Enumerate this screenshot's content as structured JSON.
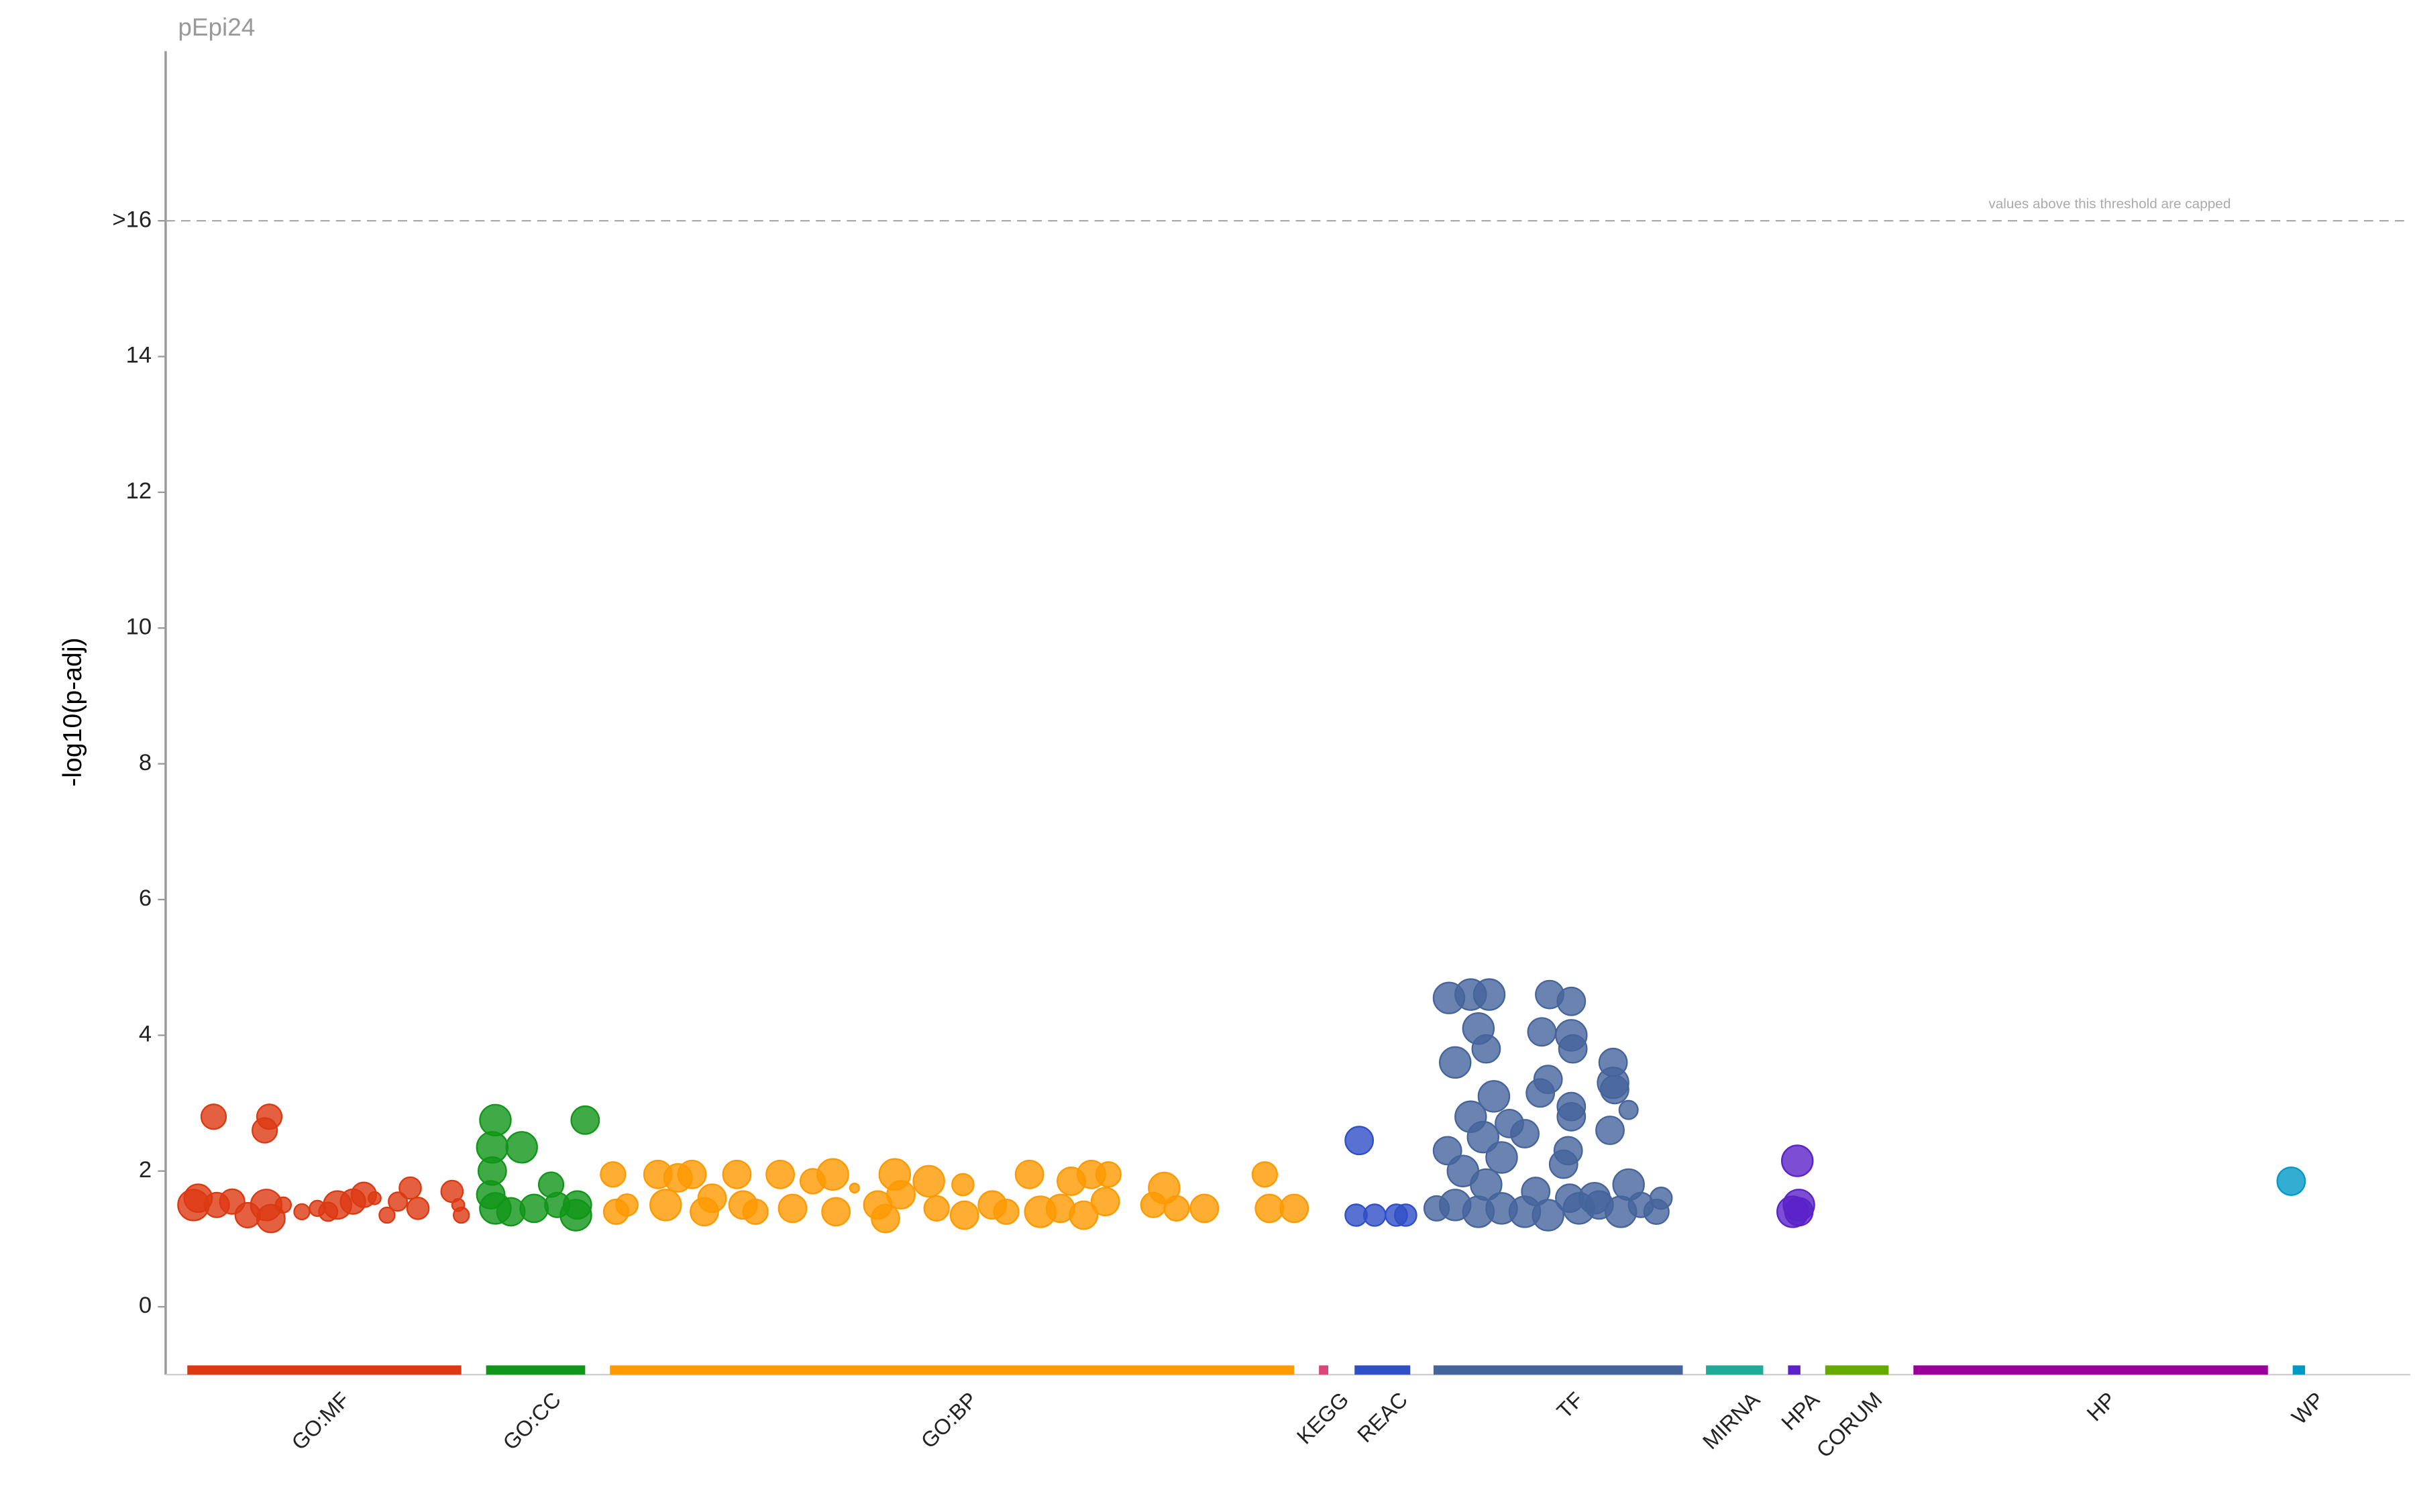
{
  "chart_data": {
    "type": "scatter",
    "title": "pEpi24",
    "y_label": "-log10(p-adj)",
    "annotation": "values above this threshold are capped",
    "xlim": [
      0,
      1450
    ],
    "ylim": [
      -1,
      18.5
    ],
    "yticks": [
      0,
      2,
      4,
      6,
      8,
      10,
      12,
      14,
      {
        "value": 16,
        "label": ">16"
      }
    ],
    "series": [
      {
        "name": "GO:MF",
        "color": "#dc3912",
        "range": [
          14,
          191
        ],
        "x": [
          18,
          21,
          33,
          43,
          53,
          65,
          68,
          31,
          67,
          64,
          88,
          98,
          111,
          121,
          128,
          135,
          143,
          150,
          158,
          163,
          185,
          191,
          189,
          105,
          76
        ],
        "values": [
          1.5,
          1.6,
          1.5,
          1.55,
          1.35,
          1.5,
          1.3,
          2.8,
          2.8,
          2.6,
          1.4,
          1.45,
          1.5,
          1.55,
          1.65,
          1.6,
          1.35,
          1.55,
          1.75,
          1.45,
          1.7,
          1.35,
          1.5,
          1.4,
          1.5
        ],
        "sizes": [
          10,
          9,
          8,
          8,
          8,
          10,
          9,
          8,
          8,
          8,
          5,
          5,
          9,
          8,
          8,
          4,
          5,
          6,
          7,
          7,
          7,
          5,
          4,
          6,
          5
        ]
      },
      {
        "name": "GO:CC",
        "color": "#109618",
        "range": [
          207,
          271
        ],
        "x": [
          213,
          211,
          230,
          211,
          210,
          213,
          223,
          238,
          249,
          253,
          265,
          266,
          271
        ],
        "values": [
          2.75,
          2.35,
          2.35,
          2.0,
          1.65,
          1.45,
          1.4,
          1.45,
          1.8,
          1.5,
          1.35,
          1.5,
          2.75
        ],
        "sizes": [
          10,
          10,
          10,
          9,
          9,
          10,
          9,
          9,
          8,
          8,
          10,
          9,
          9
        ]
      },
      {
        "name": "GO:BP",
        "color": "#ff9900",
        "range": [
          287,
          729
        ],
        "x": [
          289,
          291,
          298,
          318,
          323,
          331,
          340,
          348,
          353,
          369,
          373,
          381,
          397,
          405,
          418,
          431,
          433,
          445,
          460,
          465,
          471,
          475,
          493,
          498,
          515,
          516,
          534,
          543,
          558,
          565,
          578,
          585,
          593,
          598,
          607,
          609,
          638,
          645,
          653,
          671,
          710,
          713,
          729
        ],
        "values": [
          1.95,
          1.4,
          1.5,
          1.95,
          1.5,
          1.9,
          1.95,
          1.4,
          1.6,
          1.95,
          1.5,
          1.4,
          1.95,
          1.45,
          1.85,
          1.95,
          1.4,
          1.75,
          1.5,
          1.3,
          1.95,
          1.65,
          1.85,
          1.45,
          1.8,
          1.35,
          1.5,
          1.4,
          1.95,
          1.4,
          1.45,
          1.85,
          1.35,
          1.95,
          1.55,
          1.95,
          1.5,
          1.75,
          1.45,
          1.45,
          1.95,
          1.45,
          1.45
        ],
        "sizes": [
          8,
          8,
          7,
          9,
          10,
          9,
          9,
          9,
          9,
          9,
          9,
          8,
          9,
          9,
          8,
          10,
          9,
          3,
          9,
          9,
          10,
          9,
          10,
          8,
          7,
          9,
          9,
          8,
          9,
          10,
          9,
          9,
          9,
          9,
          9,
          8,
          8,
          10,
          8,
          9,
          8,
          9,
          9
        ]
      },
      {
        "name": "KEGG",
        "color": "#dd4477",
        "range": [
          745,
          751
        ],
        "x": [],
        "values": [],
        "sizes": []
      },
      {
        "name": "REAC",
        "color": "#2f4fc6",
        "range": [
          768,
          804
        ],
        "x": [
          771,
          769,
          781,
          795,
          801
        ],
        "values": [
          2.45,
          1.35,
          1.35,
          1.35,
          1.35
        ],
        "sizes": [
          9,
          7,
          7,
          7,
          7
        ]
      },
      {
        "name": "TF",
        "color": "#46649c",
        "range": [
          819,
          980
        ],
        "x": [
          829,
          843,
          855,
          833,
          848,
          853,
          858,
          843,
          851,
          828,
          838,
          853,
          863,
          868,
          878,
          833,
          848,
          863,
          878,
          893,
          894,
          908,
          889,
          908,
          909,
          893,
          888,
          908,
          908,
          906,
          903,
          935,
          935,
          936,
          945,
          933,
          926,
          945,
          940,
          907,
          913,
          923,
          953,
          966,
          963,
          821,
          885
        ],
        "values": [
          4.55,
          4.6,
          4.6,
          3.6,
          4.1,
          3.8,
          3.1,
          2.8,
          2.5,
          2.3,
          2.0,
          1.8,
          2.2,
          2.7,
          2.55,
          1.5,
          1.4,
          1.45,
          1.4,
          1.35,
          4.6,
          4.5,
          4.05,
          4.0,
          3.8,
          3.35,
          3.15,
          2.95,
          2.8,
          2.3,
          2.1,
          3.6,
          3.3,
          3.2,
          2.9,
          2.6,
          1.5,
          1.8,
          1.4,
          1.6,
          1.45,
          1.6,
          1.5,
          1.6,
          1.4,
          1.45,
          1.7
        ],
        "sizes": [
          10,
          10,
          10,
          10,
          10,
          9,
          10,
          10,
          10,
          9,
          10,
          10,
          10,
          9,
          9,
          10,
          10,
          10,
          10,
          10,
          9,
          9,
          9,
          10,
          9,
          9,
          9,
          9,
          9,
          9,
          9,
          9,
          10,
          9,
          6,
          9,
          9,
          10,
          10,
          9,
          10,
          10,
          8,
          7,
          8,
          8,
          9
        ]
      },
      {
        "name": "MIRNA",
        "color": "#22aa99",
        "range": [
          995,
          1032
        ],
        "x": [],
        "values": [],
        "sizes": []
      },
      {
        "name": "HPA",
        "color": "#5a22c8",
        "range": [
          1048,
          1056
        ],
        "x": [
          1054,
          1051,
          1055,
          1055
        ],
        "values": [
          2.15,
          1.4,
          1.5,
          1.4
        ],
        "sizes": [
          10,
          10,
          10,
          9
        ]
      },
      {
        "name": "CORUM",
        "color": "#66aa00",
        "range": [
          1072,
          1113
        ],
        "x": [],
        "values": [],
        "sizes": []
      },
      {
        "name": "HP",
        "color": "#990099",
        "range": [
          1129,
          1358
        ],
        "x": [],
        "values": [],
        "sizes": []
      },
      {
        "name": "WP",
        "color": "#0099c6",
        "range": [
          1374,
          1382
        ],
        "x": [
          1373
        ],
        "values": [
          1.85
        ],
        "sizes": [
          9
        ]
      }
    ]
  }
}
